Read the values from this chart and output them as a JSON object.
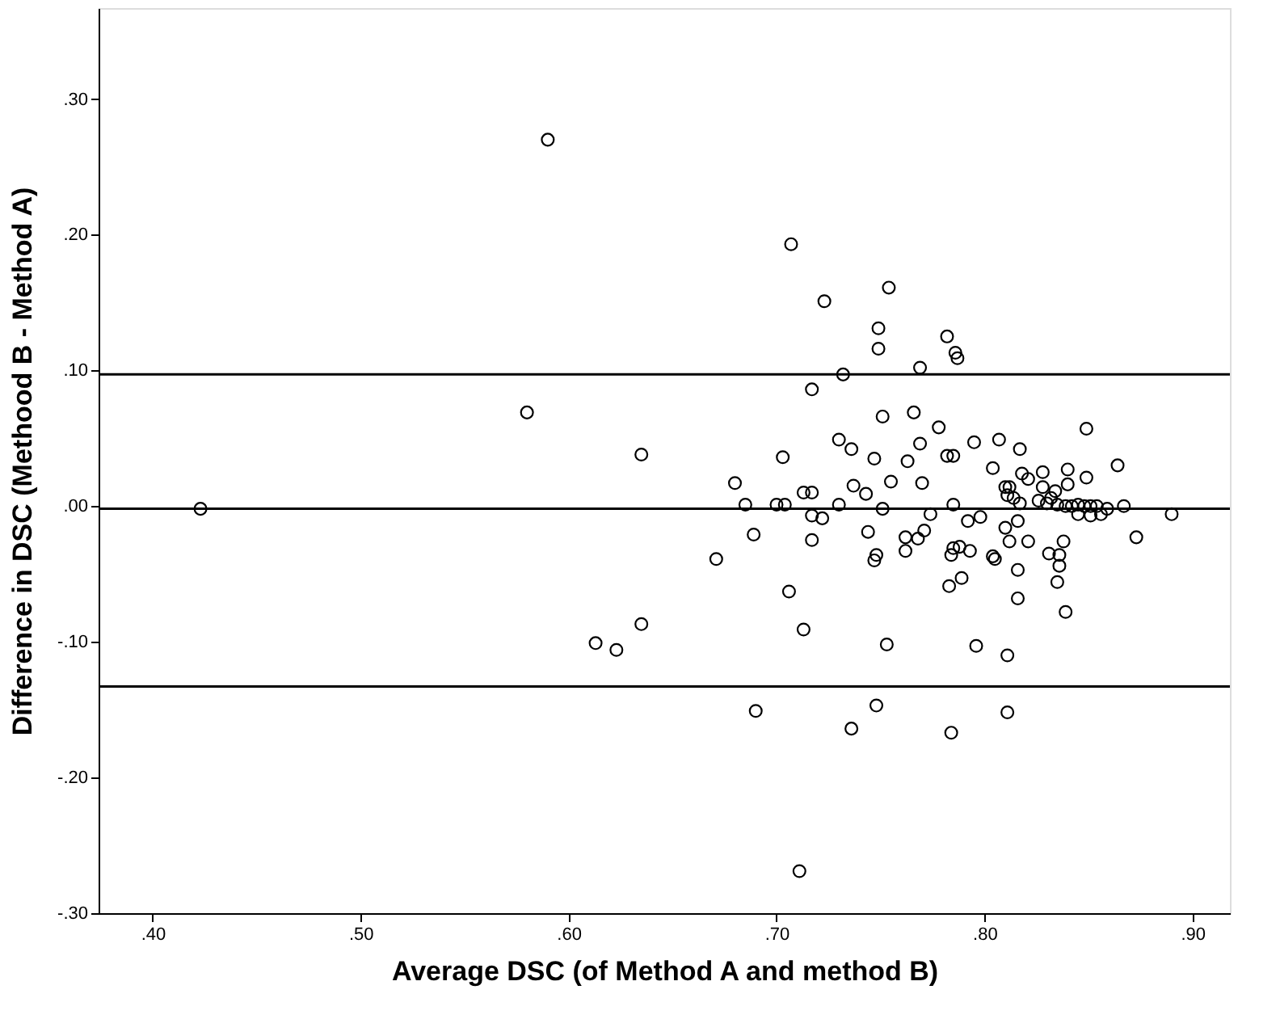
{
  "chart_data": {
    "type": "scatter",
    "xlabel": "Average DSC (of Method A and method B)",
    "ylabel": "Difference in DSC (Methood B - Method A)",
    "xlim": [
      0.374,
      0.918
    ],
    "ylim": [
      -0.3,
      0.367
    ],
    "xticks": [
      {
        "value": 0.4,
        "label": ".40"
      },
      {
        "value": 0.5,
        "label": ".50"
      },
      {
        "value": 0.6,
        "label": ".60"
      },
      {
        "value": 0.7,
        "label": ".70"
      },
      {
        "value": 0.8,
        "label": ".80"
      },
      {
        "value": 0.9,
        "label": ".90"
      }
    ],
    "yticks": [
      {
        "value": -0.3,
        "label": "-.30"
      },
      {
        "value": -0.2,
        "label": "-.20"
      },
      {
        "value": -0.1,
        "label": "-.10"
      },
      {
        "value": 0,
        "label": ".00"
      },
      {
        "value": 0.1,
        "label": ".10"
      },
      {
        "value": 0.2,
        "label": ".20"
      },
      {
        "value": 0.3,
        "label": ".30"
      }
    ],
    "grid": false,
    "marker": "circle",
    "ref_lines": [
      {
        "axis": "y",
        "value": 0.097,
        "color": "#000000"
      },
      {
        "axis": "y",
        "value": -0.002,
        "color": "#000000"
      },
      {
        "axis": "y",
        "value": -0.133,
        "color": "#000000"
      }
    ],
    "series": [
      {
        "color": "#000000",
        "x": [
          0.423,
          0.59,
          0.58,
          0.613,
          0.623,
          0.635,
          0.635,
          0.707,
          0.754,
          0.723,
          0.749,
          0.749,
          0.769,
          0.732,
          0.717,
          0.751,
          0.766,
          0.769,
          0.703,
          0.73,
          0.736,
          0.747,
          0.763,
          0.68,
          0.755,
          0.737,
          0.743,
          0.713,
          0.717,
          0.77,
          0.685,
          0.7,
          0.704,
          0.73,
          0.751,
          0.717,
          0.722,
          0.689,
          0.744,
          0.717,
          0.762,
          0.768,
          0.762,
          0.671,
          0.748,
          0.747,
          0.706,
          0.713,
          0.753,
          0.69,
          0.748,
          0.736,
          0.711,
          0.771,
          0.774,
          0.778,
          0.785,
          0.782,
          0.785,
          0.795,
          0.804,
          0.807,
          0.817,
          0.818,
          0.821,
          0.828,
          0.84,
          0.849,
          0.864,
          0.849,
          0.84,
          0.828,
          0.834,
          0.81,
          0.812,
          0.811,
          0.814,
          0.817,
          0.826,
          0.83,
          0.832,
          0.835,
          0.839,
          0.842,
          0.845,
          0.848,
          0.851,
          0.854,
          0.859,
          0.867,
          0.845,
          0.851,
          0.856,
          0.89,
          0.792,
          0.798,
          0.816,
          0.81,
          0.812,
          0.821,
          0.831,
          0.838,
          0.836,
          0.836,
          0.835,
          0.839,
          0.816,
          0.816,
          0.873,
          0.804,
          0.805,
          0.793,
          0.788,
          0.785,
          0.784,
          0.789,
          0.783,
          0.796,
          0.811,
          0.782,
          0.786,
          0.787,
          0.811,
          0.784
        ],
        "values": [
          -0.002,
          0.27,
          0.069,
          -0.101,
          -0.106,
          0.038,
          -0.087,
          0.193,
          0.161,
          0.151,
          0.131,
          0.116,
          0.102,
          0.097,
          0.086,
          0.066,
          0.069,
          0.046,
          0.036,
          0.049,
          0.042,
          0.035,
          0.033,
          0.017,
          0.018,
          0.015,
          0.009,
          0.01,
          0.01,
          0.017,
          0.001,
          0.001,
          0.001,
          0.001,
          -0.002,
          -0.007,
          -0.009,
          -0.021,
          -0.019,
          -0.025,
          -0.023,
          -0.024,
          -0.033,
          -0.039,
          -0.036,
          -0.04,
          -0.063,
          -0.091,
          -0.102,
          -0.151,
          -0.147,
          -0.164,
          -0.269,
          -0.018,
          -0.006,
          0.058,
          0.037,
          0.037,
          0.001,
          0.047,
          0.028,
          0.049,
          0.042,
          0.024,
          0.02,
          0.025,
          0.027,
          0.057,
          0.03,
          0.021,
          0.016,
          0.014,
          0.011,
          0.014,
          0.014,
          0.008,
          0.006,
          0.002,
          0.004,
          0.002,
          0.006,
          0.001,
          0.0,
          0.0,
          0.001,
          0.0,
          0.0,
          0.0,
          -0.002,
          0.0,
          -0.006,
          -0.007,
          -0.006,
          -0.006,
          -0.011,
          -0.008,
          -0.011,
          -0.016,
          -0.026,
          -0.026,
          -0.035,
          -0.026,
          -0.036,
          -0.044,
          -0.056,
          -0.078,
          -0.047,
          -0.068,
          -0.023,
          -0.037,
          -0.039,
          -0.033,
          -0.03,
          -0.031,
          -0.036,
          -0.053,
          -0.059,
          -0.103,
          -0.11,
          0.125,
          0.113,
          0.109,
          -0.152,
          -0.167
        ]
      }
    ]
  }
}
